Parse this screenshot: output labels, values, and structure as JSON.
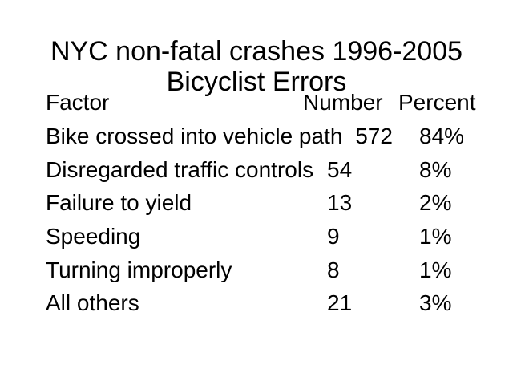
{
  "slide": {
    "title_line1": "NYC non-fatal crashes 1996-2005",
    "title_line2": "Bicyclist Errors",
    "background_color": "#ffffff",
    "text_color": "#000000"
  },
  "table": {
    "headers": {
      "factor": "Factor",
      "number": "Number",
      "percent": "Percent"
    },
    "rows": [
      {
        "factor": "Bike crossed into vehicle path",
        "number": "572",
        "percent": "84%"
      },
      {
        "factor": "Disregarded traffic controls",
        "number": "54",
        "percent": "8%"
      },
      {
        "factor": "Failure to yield",
        "number": "13",
        "percent": "2%"
      },
      {
        "factor": "Speeding",
        "number": "9",
        "percent": "1%"
      },
      {
        "factor": "Turning improperly",
        "number": "8",
        "percent": "1%"
      },
      {
        "factor": "All others",
        "number": "21",
        "percent": "3%"
      }
    ]
  }
}
